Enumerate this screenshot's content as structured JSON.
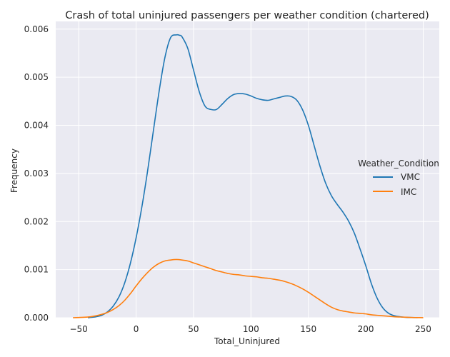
{
  "chart_data": {
    "type": "line",
    "title": "Crash of total uninjured passengers per weather condition (chartered)",
    "xlabel": "Total_Uninjured",
    "ylabel": "Frequency",
    "xlim": [
      -70,
      264
    ],
    "ylim": [
      0,
      0.00616
    ],
    "x_ticks": [
      -50,
      0,
      50,
      100,
      150,
      200,
      250
    ],
    "x_tick_labels": [
      "−50",
      "0",
      "50",
      "100",
      "150",
      "200",
      "250"
    ],
    "y_ticks": [
      0,
      0.001,
      0.002,
      0.003,
      0.004,
      0.005,
      0.006
    ],
    "y_tick_labels": [
      "0.000",
      "0.001",
      "0.002",
      "0.003",
      "0.004",
      "0.005",
      "0.006"
    ],
    "grid": true,
    "legend": {
      "title": "Weather_Condition",
      "placement": "right"
    },
    "series": [
      {
        "name": "VMC",
        "color": "#1f77b4",
        "x": [
          -42,
          -35,
          -30,
          -25,
          -20,
          -15,
          -10,
          -5,
          0,
          5,
          10,
          15,
          20,
          25,
          30,
          35,
          38,
          40,
          45,
          50,
          55,
          60,
          65,
          70,
          75,
          80,
          85,
          90,
          95,
          100,
          105,
          110,
          115,
          120,
          125,
          130,
          135,
          140,
          145,
          150,
          155,
          160,
          165,
          170,
          175,
          180,
          185,
          190,
          195,
          200,
          205,
          210,
          215,
          220,
          225,
          230,
          235,
          240,
          245
        ],
        "y": [
          0.0,
          2e-05,
          5e-05,
          0.00012,
          0.00024,
          0.00043,
          0.00072,
          0.00113,
          0.00166,
          0.0023,
          0.00305,
          0.00388,
          0.0047,
          0.0054,
          0.00582,
          0.00588,
          0.00587,
          0.00584,
          0.0056,
          0.00515,
          0.0047,
          0.0044,
          0.00433,
          0.00433,
          0.00444,
          0.00456,
          0.00464,
          0.00466,
          0.00465,
          0.00461,
          0.00456,
          0.00453,
          0.00452,
          0.00455,
          0.00458,
          0.00461,
          0.0046,
          0.00452,
          0.00432,
          0.004,
          0.00358,
          0.00316,
          0.0028,
          0.00254,
          0.00236,
          0.0022,
          0.00201,
          0.00176,
          0.00143,
          0.00108,
          0.0007,
          0.0004,
          0.0002,
          9e-05,
          4e-05,
          2e-05,
          8e-06,
          4e-06,
          2e-06
        ]
      },
      {
        "name": "IMC",
        "color": "#ff7f0e",
        "x": [
          -55,
          -50,
          -45,
          -40,
          -35,
          -30,
          -25,
          -20,
          -15,
          -10,
          -5,
          0,
          5,
          10,
          15,
          20,
          25,
          30,
          35,
          40,
          45,
          50,
          55,
          60,
          65,
          70,
          75,
          80,
          85,
          90,
          95,
          100,
          105,
          110,
          115,
          120,
          125,
          130,
          135,
          140,
          145,
          150,
          155,
          160,
          165,
          170,
          175,
          180,
          185,
          190,
          195,
          200,
          205,
          210,
          215,
          220,
          225,
          230,
          235,
          240,
          245,
          250
        ],
        "y": [
          0.0,
          5e-06,
          1e-05,
          2e-05,
          4e-05,
          7e-05,
          0.00011,
          0.00017,
          0.00025,
          0.00036,
          0.0005,
          0.00066,
          0.00081,
          0.00094,
          0.00105,
          0.00113,
          0.00118,
          0.0012,
          0.00121,
          0.0012,
          0.00118,
          0.00114,
          0.0011,
          0.00106,
          0.00102,
          0.00098,
          0.00095,
          0.00092,
          0.0009,
          0.00089,
          0.00087,
          0.00086,
          0.00085,
          0.00083,
          0.00082,
          0.0008,
          0.00078,
          0.00075,
          0.00071,
          0.00066,
          0.0006,
          0.00053,
          0.00045,
          0.00037,
          0.00029,
          0.00022,
          0.00017,
          0.00014,
          0.00012,
          0.0001,
          9e-05,
          8e-05,
          6e-05,
          5e-05,
          4e-05,
          3e-05,
          2e-05,
          1.5e-05,
          1e-05,
          5e-06,
          3e-06,
          1e-06
        ]
      }
    ]
  }
}
